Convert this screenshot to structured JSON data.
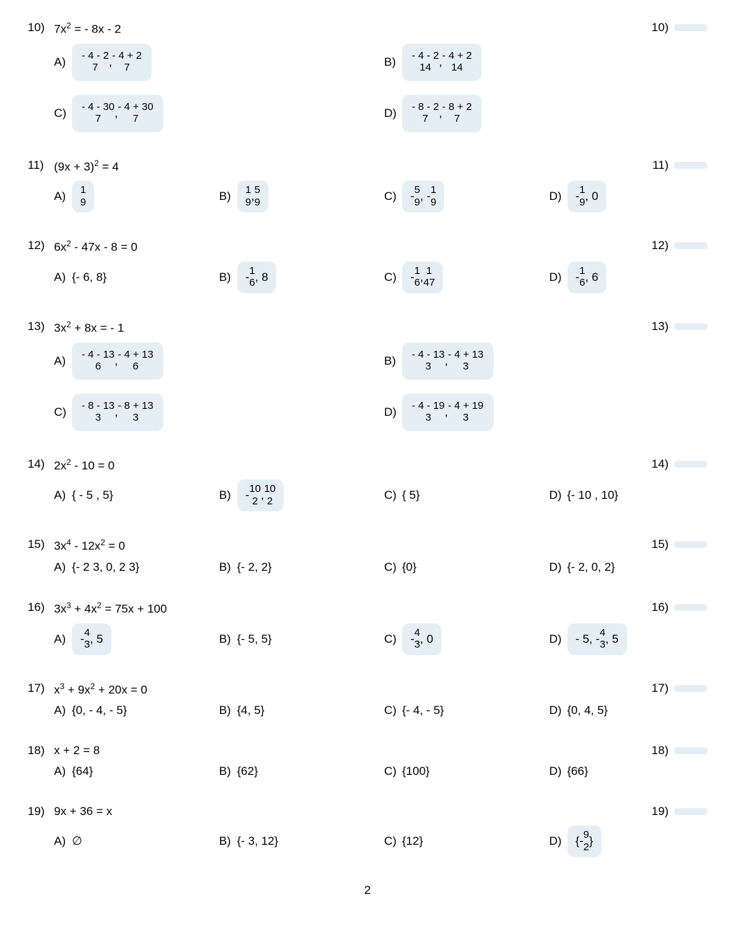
{
  "colors": {
    "badge_bg": "#e6eef5",
    "text": "#000000",
    "page_bg": "#ffffff"
  },
  "typography": {
    "font_family": "Arial",
    "body_fontsize": 17,
    "small_fontsize": 15,
    "sup_fontsize": 12
  },
  "page_number": "2",
  "problems": [
    {
      "num": "10)",
      "stem_html": "7x<span class='sup'>2</span> = - 8x - 2",
      "layout": "two-col",
      "choices": [
        {
          "letter": "A)",
          "frac_pair": {
            "n1": "- 4 -    2",
            "d1": "7",
            "n2": "- 4 +    2",
            "d2": "7"
          }
        },
        {
          "letter": "B)",
          "frac_pair": {
            "n1": "- 4 -    2",
            "d1": "14",
            "n2": "- 4 +    2",
            "d2": "14"
          }
        },
        {
          "letter": "C)",
          "frac_pair": {
            "n1": "- 4 -    30",
            "d1": "7",
            "n2": "- 4 +    30",
            "d2": "7"
          }
        },
        {
          "letter": "D)",
          "frac_pair": {
            "n1": "- 8 -    2",
            "d1": "7",
            "n2": "- 8 +    2",
            "d2": "7"
          }
        }
      ],
      "ans": "10)"
    },
    {
      "num": "11)",
      "stem_html": "(9x + 3)<span class='sup'>2</span> = 4",
      "layout": "four-col",
      "choices": [
        {
          "letter": "A)",
          "frac_single": {
            "n": "1",
            "d": "9"
          }
        },
        {
          "letter": "B)",
          "frac_two": {
            "n1": "1",
            "d1": "9",
            "n2": "5",
            "d2": "9"
          }
        },
        {
          "letter": "C)",
          "frac_two_neg": {
            "p1": "-",
            "n1": "5",
            "d1": "9",
            "p2": "-",
            "n2": "1",
            "d2": "9"
          }
        },
        {
          "letter": "D)",
          "frac_then": {
            "p": "-",
            "n": "1",
            "d": "9",
            "after": ", 0"
          }
        }
      ],
      "ans": "11)"
    },
    {
      "num": "12)",
      "stem_html": "6x<span class='sup'>2</span> - 47x - 8 = 0",
      "layout": "four-col",
      "choices": [
        {
          "letter": "A)",
          "text": "{- 6, 8}"
        },
        {
          "letter": "B)",
          "frac_then": {
            "p": "-",
            "n": "1",
            "d": "6",
            "after": ", 8"
          }
        },
        {
          "letter": "C)",
          "frac_two_neg": {
            "p1": "-",
            "n1": "1",
            "d1": "6",
            "p2": "",
            "n2": "1",
            "d2": "47"
          }
        },
        {
          "letter": "D)",
          "frac_then": {
            "p": "-",
            "n": "1",
            "d": "6",
            "after": ", 6"
          }
        }
      ],
      "ans": "12)"
    },
    {
      "num": "13)",
      "stem_html": "3x<span class='sup'>2</span> + 8x = - 1",
      "layout": "two-col",
      "choices": [
        {
          "letter": "A)",
          "frac_pair": {
            "n1": "- 4 -    13",
            "d1": "6",
            "n2": "- 4 +    13",
            "d2": "6"
          }
        },
        {
          "letter": "B)",
          "frac_pair": {
            "n1": "- 4 -    13",
            "d1": "3",
            "n2": "- 4 +    13",
            "d2": "3"
          }
        },
        {
          "letter": "C)",
          "frac_pair": {
            "n1": "- 8 -    13",
            "d1": "3",
            "n2": "- 8 +    13",
            "d2": "3"
          }
        },
        {
          "letter": "D)",
          "frac_pair": {
            "n1": "- 4 -    19",
            "d1": "3",
            "n2": "- 4 +    19",
            "d2": "3"
          }
        }
      ],
      "ans": "13)"
    },
    {
      "num": "14)",
      "stem_html": "2x<span class='sup'>2</span> - 10 = 0",
      "layout": "four-col",
      "choices": [
        {
          "letter": "A)",
          "text": "{ -    5 ,    5}"
        },
        {
          "letter": "B)",
          "frac_two_neg": {
            "p1": "-",
            "n1": "   10",
            "d1": "2",
            "p2": "",
            "n2": "   10",
            "d2": "2"
          }
        },
        {
          "letter": "C)",
          "text": "{    5}"
        },
        {
          "letter": "D)",
          "text": "{-    10 ,    10}"
        }
      ],
      "ans": "14)"
    },
    {
      "num": "15)",
      "stem_html": "3x<span class='sup'>4</span> - 12x<span class='sup'>2</span> = 0",
      "layout": "four-col",
      "choices": [
        {
          "letter": "A)",
          "text": "{- 2   3, 0, 2   3}"
        },
        {
          "letter": "B)",
          "text": "{- 2, 2}"
        },
        {
          "letter": "C)",
          "text": "{0}"
        },
        {
          "letter": "D)",
          "text": "{- 2, 0, 2}"
        }
      ],
      "ans": "15)"
    },
    {
      "num": "16)",
      "stem_html": "3x<span class='sup'>3</span> + 4x<span class='sup'>2</span> = 75x + 100",
      "layout": "four-col",
      "choices": [
        {
          "letter": "A)",
          "frac_then": {
            "p": "-",
            "n": "4",
            "d": "3",
            "after": ", 5"
          }
        },
        {
          "letter": "B)",
          "text": "{- 5, 5}"
        },
        {
          "letter": "C)",
          "frac_then": {
            "p": "-",
            "n": "4",
            "d": "3",
            "after": ", 0"
          }
        },
        {
          "letter": "D)",
          "prefix_frac": {
            "before": "- 5, -",
            "n": "4",
            "d": "3",
            "after": ", 5"
          }
        }
      ],
      "ans": "16)"
    },
    {
      "num": "17)",
      "stem_html": "x<span class='sup'>3</span> + 9x<span class='sup'>2</span> + 20x = 0",
      "layout": "four-col",
      "choices": [
        {
          "letter": "A)",
          "text": "{0, - 4, - 5}"
        },
        {
          "letter": "B)",
          "text": "{4, 5}"
        },
        {
          "letter": "C)",
          "text": "{- 4, - 5}"
        },
        {
          "letter": "D)",
          "text": "{0, 4, 5}"
        }
      ],
      "ans": "17)"
    },
    {
      "num": "18)",
      "stem_html": "  x + 2 = 8",
      "layout": "four-col",
      "choices": [
        {
          "letter": "A)",
          "text": "{64}"
        },
        {
          "letter": "B)",
          "text": "{62}"
        },
        {
          "letter": "C)",
          "text": "{100}"
        },
        {
          "letter": "D)",
          "text": "{66}"
        }
      ],
      "ans": "18)"
    },
    {
      "num": "19)",
      "stem_html": "  9x + 36 = x",
      "layout": "four-col",
      "choices": [
        {
          "letter": "A)",
          "text": "∅"
        },
        {
          "letter": "B)",
          "text": "{- 3, 12}"
        },
        {
          "letter": "C)",
          "text": "{12}"
        },
        {
          "letter": "D)",
          "prefix_frac": {
            "before": "{- ",
            "n": "9",
            "d": "2",
            "after": "}"
          }
        }
      ],
      "ans": "19)"
    }
  ]
}
